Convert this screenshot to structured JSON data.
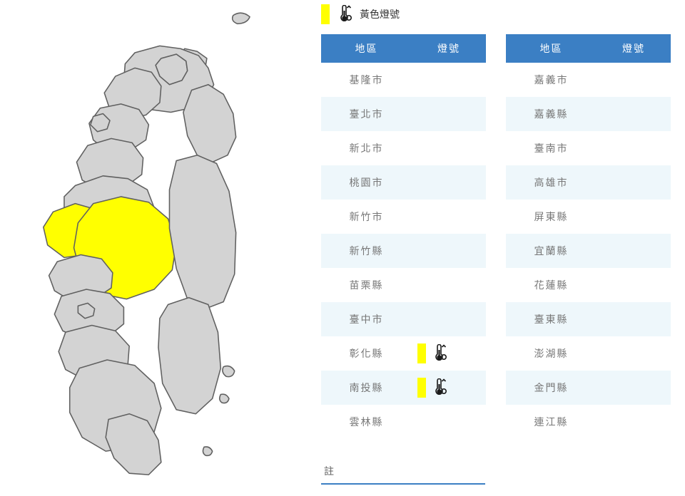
{
  "legend": {
    "swatch_color": "#ffff00",
    "label": "黃色燈號"
  },
  "colors": {
    "header_bg": "#3b7fc4",
    "header_text": "#ffffff",
    "row_alt_bg": "#eef7fb",
    "row_bg": "#ffffff",
    "text": "#777777",
    "map_fill": "#d3d3d3",
    "map_stroke": "#606060",
    "map_highlight": "#ffff00",
    "thermo_stroke": "#1a1a1a",
    "thermo_fill": "#1a1a1a"
  },
  "table_headers": {
    "region": "地區",
    "signal": "燈號"
  },
  "table_left": [
    {
      "name": "基隆市",
      "signal": null
    },
    {
      "name": "臺北市",
      "signal": null
    },
    {
      "name": "新北市",
      "signal": null
    },
    {
      "name": "桃園市",
      "signal": null
    },
    {
      "name": "新竹市",
      "signal": null
    },
    {
      "name": "新竹縣",
      "signal": null
    },
    {
      "name": "苗栗縣",
      "signal": null
    },
    {
      "name": "臺中市",
      "signal": null
    },
    {
      "name": "彰化縣",
      "signal": "yellow"
    },
    {
      "name": "南投縣",
      "signal": "yellow"
    },
    {
      "name": "雲林縣",
      "signal": null
    }
  ],
  "table_right": [
    {
      "name": "嘉義市",
      "signal": null
    },
    {
      "name": "嘉義縣",
      "signal": null
    },
    {
      "name": "臺南市",
      "signal": null
    },
    {
      "name": "高雄市",
      "signal": null
    },
    {
      "name": "屏東縣",
      "signal": null
    },
    {
      "name": "宜蘭縣",
      "signal": null
    },
    {
      "name": "花蓮縣",
      "signal": null
    },
    {
      "name": "臺東縣",
      "signal": null
    },
    {
      "name": "澎湖縣",
      "signal": null
    },
    {
      "name": "金門縣",
      "signal": null
    },
    {
      "name": "連江縣",
      "signal": null
    }
  ],
  "note_label": "註",
  "map": {
    "highlighted": [
      "彰化縣",
      "南投縣"
    ]
  }
}
